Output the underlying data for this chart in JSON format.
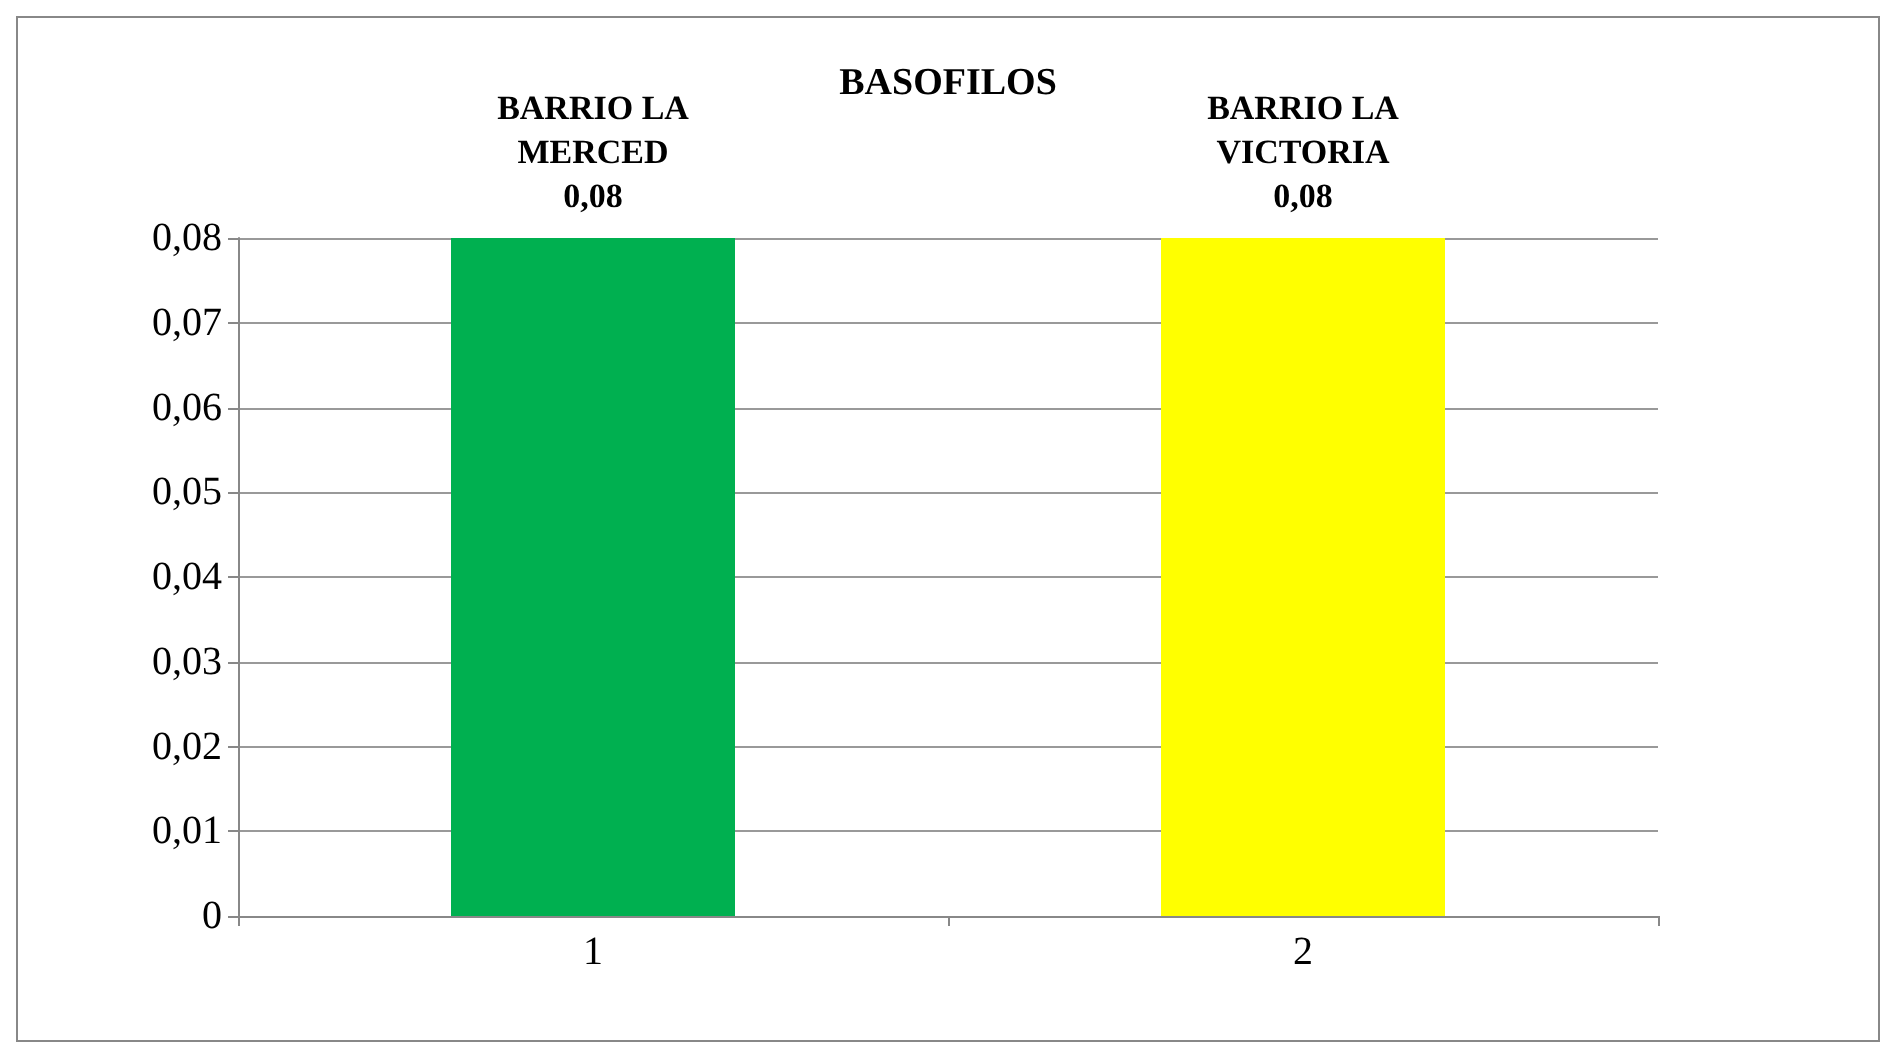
{
  "chart_data": {
    "type": "bar",
    "title": "BASOFILOS",
    "categories": [
      "1",
      "2"
    ],
    "series": [
      {
        "name": "BARRIO LA MERCED",
        "color": "#00b050",
        "values": [
          0.08,
          null
        ],
        "value_labels": [
          "0,08",
          null
        ]
      },
      {
        "name": "BARRIO LA VICTORIA",
        "color": "#ffff00",
        "values": [
          null,
          0.08
        ],
        "value_labels": [
          null,
          "0,08"
        ]
      }
    ],
    "ylim": [
      0,
      0.08
    ],
    "yticks": [
      {
        "value": 0,
        "label": "0"
      },
      {
        "value": 0.01,
        "label": "0,01"
      },
      {
        "value": 0.02,
        "label": "0,02"
      },
      {
        "value": 0.03,
        "label": "0,03"
      },
      {
        "value": 0.04,
        "label": "0,04"
      },
      {
        "value": 0.05,
        "label": "0,05"
      },
      {
        "value": 0.06,
        "label": "0,06"
      },
      {
        "value": 0.07,
        "label": "0,07"
      },
      {
        "value": 0.08,
        "label": "0,08"
      }
    ],
    "grid": "y",
    "legend": false
  }
}
